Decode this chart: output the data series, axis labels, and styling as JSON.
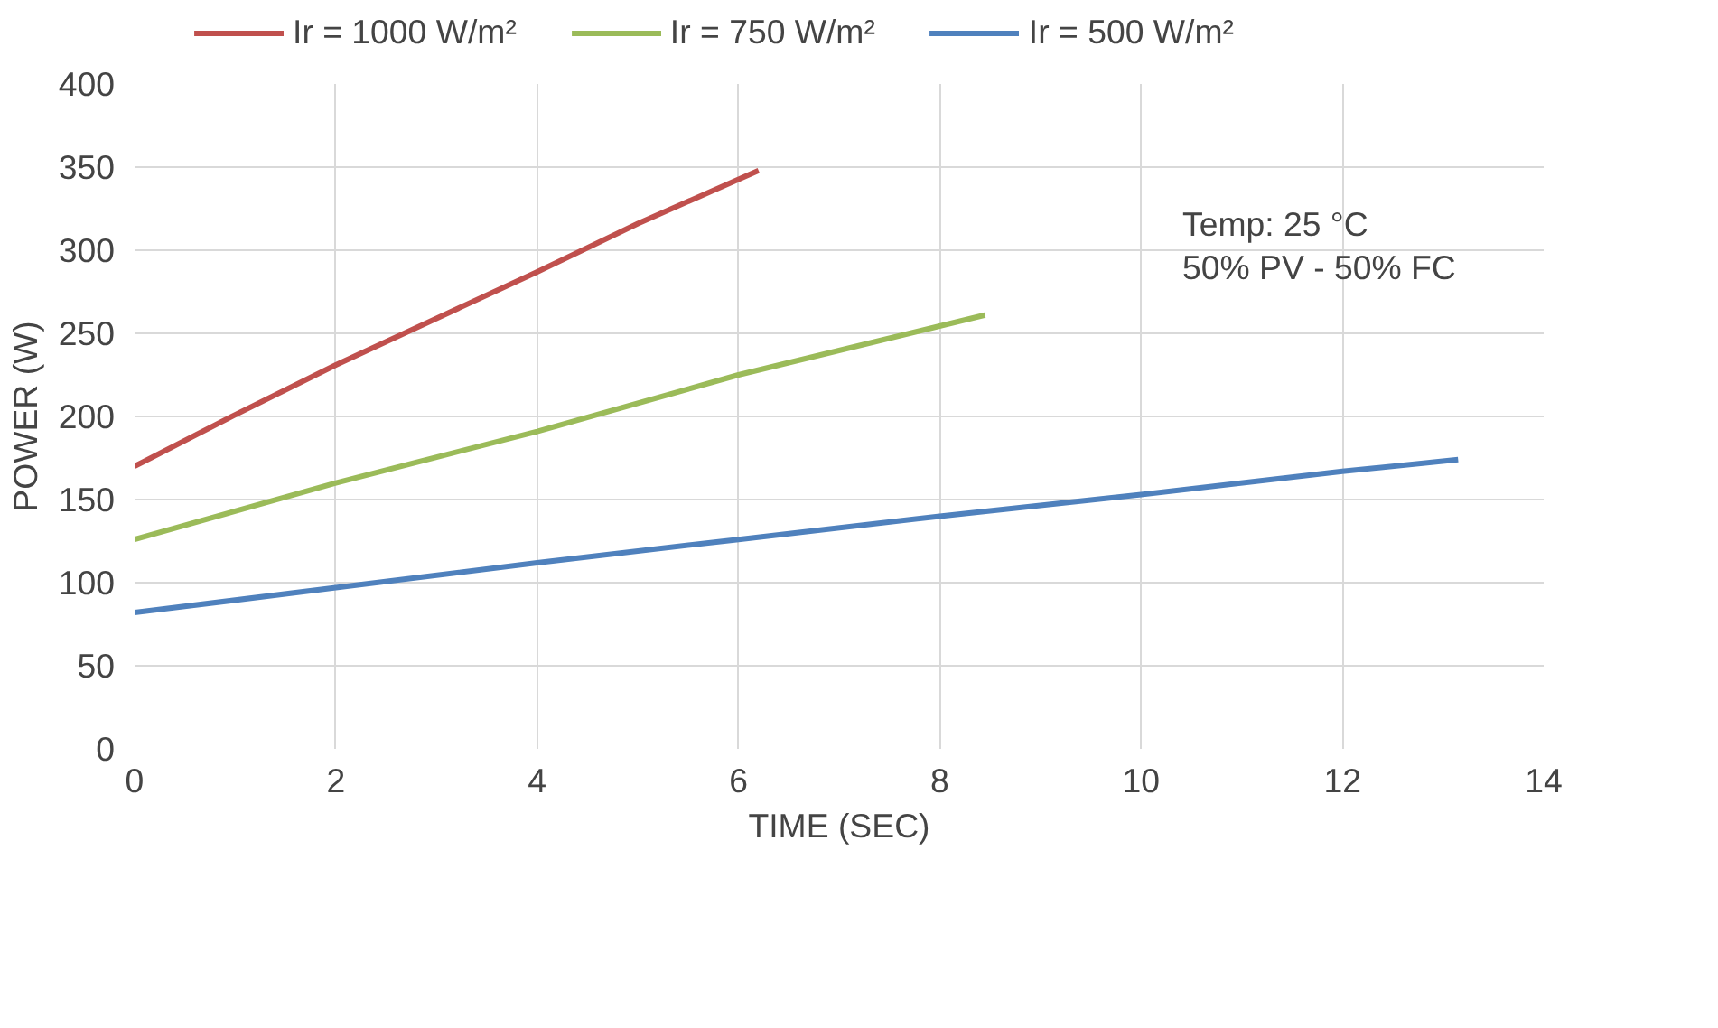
{
  "chart_data": {
    "type": "line",
    "xlabel": "TIME (SEC)",
    "ylabel": "POWER (W)",
    "xlim": [
      0,
      14
    ],
    "xticks": [
      0,
      2,
      4,
      6,
      8,
      10,
      12,
      14
    ],
    "ylim": [
      0,
      400
    ],
    "yticks": [
      0,
      50,
      100,
      150,
      200,
      250,
      300,
      350,
      400
    ],
    "grid": true,
    "legend": "top",
    "line_style": "solid",
    "annotations": [
      "Temp: 25 °C",
      "50% PV - 50% FC"
    ],
    "series": [
      {
        "name": "Ir = 1000 W/m²",
        "color": "#c0504d",
        "x": [
          0,
          1,
          2,
          3,
          4,
          5,
          6.2
        ],
        "values": [
          170,
          201,
          231,
          259,
          287,
          316,
          348
        ]
      },
      {
        "name": "Ir = 750 W/m²",
        "color": "#9bbb59",
        "x": [
          0,
          2,
          4,
          6,
          8.45
        ],
        "values": [
          126,
          160,
          191,
          225,
          261
        ]
      },
      {
        "name": "Ir = 500 W/m²",
        "color": "#4f81bd",
        "x": [
          0,
          2,
          4,
          6,
          8,
          10,
          12,
          13.15
        ],
        "values": [
          82,
          97,
          112,
          126,
          140,
          153,
          167,
          174
        ]
      }
    ]
  }
}
